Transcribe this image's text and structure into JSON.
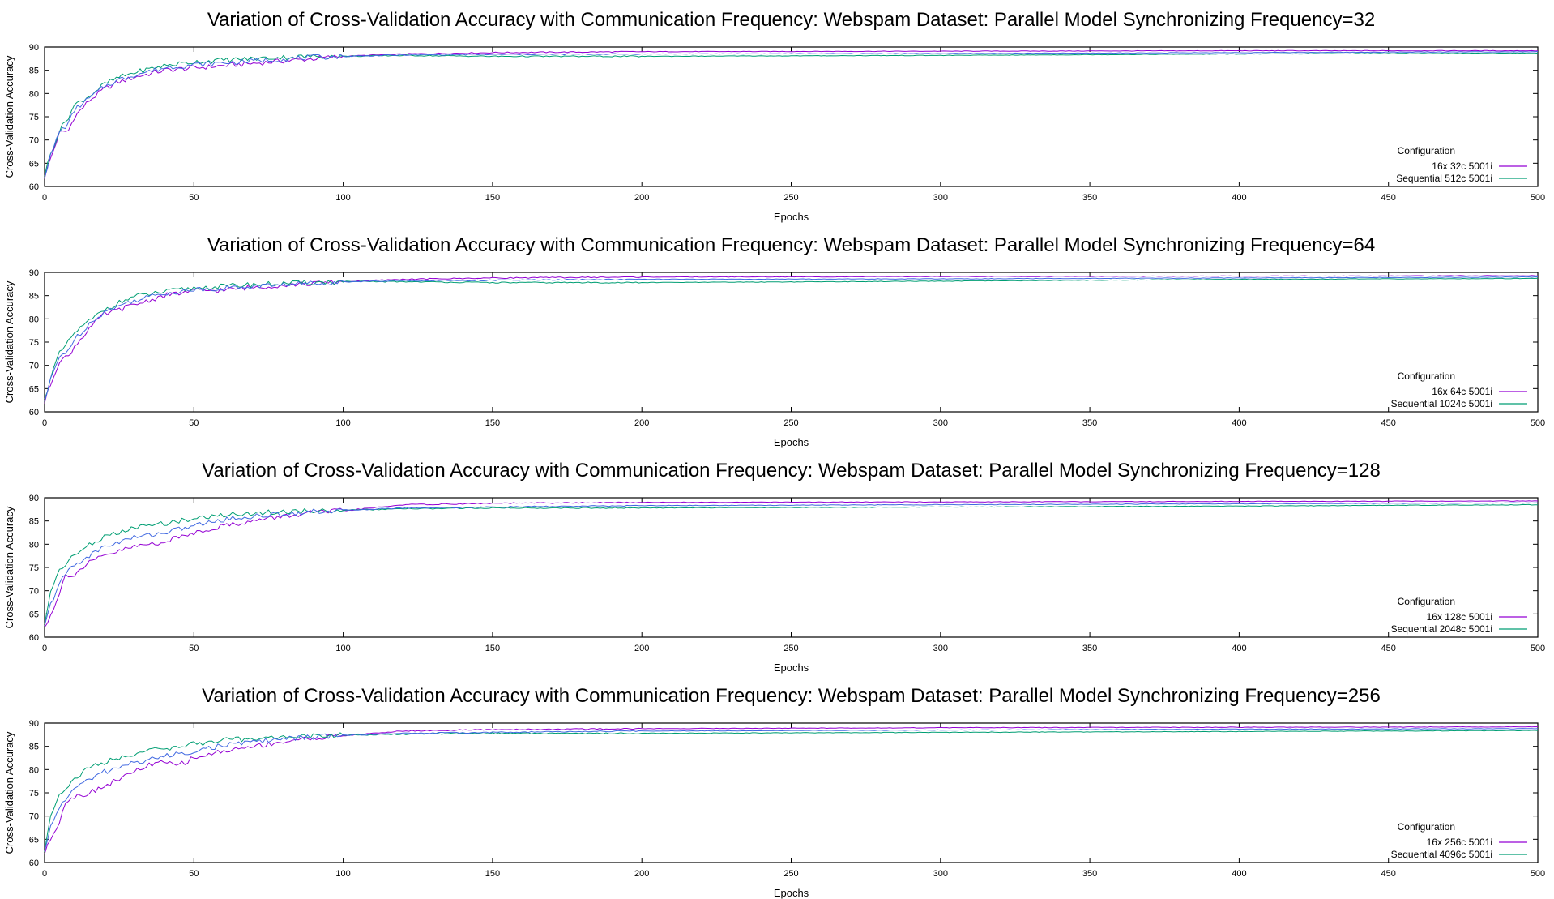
{
  "chart_data": [
    {
      "type": "line",
      "title": "Variation of Cross-Validation Accuracy with Communication Frequency: Webspam Dataset: Parallel Model Synchronizing Frequency=32",
      "xlabel": "Epochs",
      "ylabel": "Cross-Validation Accuracy",
      "xlim": [
        0,
        500
      ],
      "ylim": [
        60,
        90
      ],
      "xticks": [
        0,
        50,
        100,
        150,
        200,
        250,
        300,
        350,
        400,
        450,
        500
      ],
      "yticks": [
        60,
        65,
        70,
        75,
        80,
        85,
        90
      ],
      "grid": false,
      "legend": {
        "title": "Configuration",
        "position": "bottom-right"
      },
      "series": [
        {
          "name": "16x 32c 5001i",
          "color": "#9400d3",
          "x": [
            0,
            2,
            5,
            8,
            10,
            15,
            20,
            25,
            30,
            40,
            50,
            60,
            70,
            80,
            90,
            100,
            120,
            150,
            200,
            300,
            400,
            500
          ],
          "y": [
            62,
            66,
            71.5,
            72,
            75,
            78.5,
            81,
            82.5,
            83.5,
            85,
            85.5,
            86,
            86.5,
            87,
            87.5,
            88,
            88.5,
            88.8,
            89,
            89.1,
            89.2,
            89.2
          ]
        },
        {
          "name": "Sequential 512c 5001i",
          "color": "#009e73",
          "x": [
            0,
            2,
            5,
            8,
            10,
            15,
            20,
            25,
            30,
            40,
            50,
            60,
            70,
            80,
            90,
            100,
            120,
            150,
            200,
            300,
            400,
            500
          ],
          "y": [
            62.5,
            67,
            72,
            75,
            77.5,
            79.5,
            82,
            83.5,
            84.5,
            86,
            86.8,
            87.2,
            87.5,
            87.8,
            88,
            88,
            88.2,
            88,
            88,
            88.2,
            88.5,
            88.7
          ]
        },
        {
          "name": "",
          "color": "#4169e1",
          "x": [
            0,
            2,
            5,
            8,
            10,
            15,
            20,
            25,
            30,
            40,
            50,
            60,
            70,
            80,
            90,
            100,
            120,
            150,
            200,
            300,
            400,
            500
          ],
          "y": [
            62.3,
            66.5,
            71.8,
            73.5,
            76.5,
            79,
            81.5,
            83,
            84,
            85.5,
            86.2,
            86.6,
            87,
            87.4,
            87.8,
            88,
            88.3,
            88.4,
            88.5,
            88.6,
            88.8,
            89
          ]
        }
      ]
    },
    {
      "type": "line",
      "title": "Variation of Cross-Validation Accuracy with Communication Frequency: Webspam Dataset: Parallel Model Synchronizing Frequency=64",
      "xlabel": "Epochs",
      "ylabel": "Cross-Validation Accuracy",
      "xlim": [
        0,
        500
      ],
      "ylim": [
        60,
        90
      ],
      "xticks": [
        0,
        50,
        100,
        150,
        200,
        250,
        300,
        350,
        400,
        450,
        500
      ],
      "yticks": [
        60,
        65,
        70,
        75,
        80,
        85,
        90
      ],
      "grid": false,
      "legend": {
        "title": "Configuration",
        "position": "bottom-right"
      },
      "series": [
        {
          "name": "16x 64c 5001i",
          "color": "#9400d3",
          "x": [
            0,
            2,
            5,
            8,
            10,
            15,
            20,
            25,
            30,
            40,
            50,
            60,
            70,
            80,
            90,
            100,
            120,
            150,
            200,
            300,
            400,
            500
          ],
          "y": [
            62,
            66,
            71,
            72,
            74,
            78,
            81,
            82,
            83,
            85,
            86,
            86.2,
            86.8,
            87.3,
            87.6,
            88,
            88.5,
            88.8,
            89,
            89.1,
            89.2,
            89.3
          ]
        },
        {
          "name": "Sequential 1024c 5001i",
          "color": "#009e73",
          "x": [
            0,
            2,
            5,
            8,
            10,
            15,
            20,
            25,
            30,
            40,
            50,
            60,
            70,
            80,
            90,
            100,
            120,
            150,
            200,
            300,
            400,
            500
          ],
          "y": [
            62.5,
            67.5,
            72.5,
            75,
            77,
            79.5,
            82,
            83.5,
            84.8,
            85.8,
            86.6,
            87,
            87.4,
            87.6,
            87.8,
            88,
            88,
            87.8,
            87.8,
            88.1,
            88.5,
            88.7
          ]
        },
        {
          "name": "",
          "color": "#4169e1",
          "x": [
            0,
            2,
            5,
            8,
            10,
            15,
            20,
            25,
            30,
            40,
            50,
            60,
            70,
            80,
            90,
            100,
            120,
            150,
            200,
            300,
            400,
            500
          ],
          "y": [
            62.2,
            66.8,
            71.8,
            73.5,
            75.5,
            79,
            81.5,
            82.8,
            84,
            85.5,
            86.3,
            86.6,
            87,
            87.4,
            87.7,
            88,
            88.2,
            88.3,
            88.5,
            88.6,
            88.8,
            89
          ]
        }
      ]
    },
    {
      "type": "line",
      "title": "Variation of Cross-Validation Accuracy with Communication Frequency: Webspam Dataset: Parallel Model Synchronizing Frequency=128",
      "xlabel": "Epochs",
      "ylabel": "Cross-Validation Accuracy",
      "xlim": [
        0,
        500
      ],
      "ylim": [
        60,
        90
      ],
      "xticks": [
        0,
        50,
        100,
        150,
        200,
        250,
        300,
        350,
        400,
        450,
        500
      ],
      "yticks": [
        60,
        65,
        70,
        75,
        80,
        85,
        90
      ],
      "grid": false,
      "legend": {
        "title": "Configuration",
        "position": "bottom-right"
      },
      "series": [
        {
          "name": "16x 128c 5001i",
          "color": "#9400d3",
          "x": [
            0,
            2,
            5,
            7,
            9,
            12,
            15,
            20,
            25,
            30,
            40,
            50,
            60,
            70,
            80,
            90,
            100,
            110,
            120,
            150,
            200,
            300,
            400,
            500
          ],
          "y": [
            62,
            65,
            69,
            74,
            73,
            74.5,
            76,
            77.5,
            78.5,
            79.5,
            80.5,
            82.5,
            84,
            85,
            86,
            86.8,
            87.2,
            87.8,
            88.5,
            88.8,
            89,
            89.1,
            89.2,
            89.3
          ]
        },
        {
          "name": "Sequential 2048c 5001i",
          "color": "#009e73",
          "x": [
            0,
            2,
            5,
            8,
            10,
            15,
            20,
            25,
            30,
            40,
            50,
            60,
            70,
            80,
            90,
            100,
            120,
            150,
            200,
            300,
            400,
            500
          ],
          "y": [
            62.5,
            70,
            74.5,
            76.5,
            77.5,
            80,
            81.5,
            82.5,
            83.5,
            84.5,
            85.5,
            86.3,
            86.7,
            87,
            87.2,
            87.3,
            87.6,
            87.8,
            87.8,
            88,
            88.2,
            88.5
          ]
        },
        {
          "name": "",
          "color": "#4169e1",
          "x": [
            0,
            2,
            5,
            8,
            10,
            15,
            20,
            25,
            30,
            40,
            50,
            60,
            70,
            80,
            90,
            100,
            120,
            150,
            200,
            300,
            400,
            500
          ],
          "y": [
            62.2,
            67,
            71.5,
            74.5,
            75.5,
            77.5,
            79.5,
            80.5,
            81.5,
            82.5,
            84,
            85.3,
            86,
            86.5,
            87,
            87.3,
            87.8,
            88,
            88.3,
            88.5,
            88.7,
            88.9
          ]
        }
      ]
    },
    {
      "type": "line",
      "title": "Variation of Cross-Validation Accuracy with Communication Frequency: Webspam Dataset: Parallel Model Synchronizing Frequency=256",
      "xlabel": "Epochs",
      "ylabel": "Cross-Validation Accuracy",
      "xlim": [
        0,
        500
      ],
      "ylim": [
        60,
        90
      ],
      "xticks": [
        0,
        50,
        100,
        150,
        200,
        250,
        300,
        350,
        400,
        450,
        500
      ],
      "yticks": [
        60,
        65,
        70,
        75,
        80,
        85,
        90
      ],
      "grid": false,
      "legend": {
        "title": "Configuration",
        "position": "bottom-right"
      },
      "series": [
        {
          "name": "16x 256c 5001i",
          "color": "#9400d3",
          "x": [
            0,
            2,
            5,
            7,
            9,
            12,
            15,
            20,
            25,
            30,
            35,
            40,
            45,
            50,
            60,
            70,
            80,
            90,
            100,
            110,
            120,
            150,
            200,
            300,
            400,
            500
          ],
          "y": [
            62,
            65,
            69,
            73,
            74,
            74.5,
            75,
            76.5,
            78,
            79.5,
            81,
            81.5,
            81,
            82.5,
            84,
            85,
            86,
            86.8,
            87.3,
            87.8,
            88.3,
            88.6,
            88.8,
            89,
            89.1,
            89.2
          ]
        },
        {
          "name": "Sequential 4096c 5001i",
          "color": "#009e73",
          "x": [
            0,
            2,
            5,
            8,
            10,
            15,
            20,
            25,
            30,
            40,
            50,
            60,
            70,
            80,
            90,
            100,
            120,
            150,
            200,
            300,
            400,
            500
          ],
          "y": [
            62.5,
            70,
            75,
            76.5,
            78,
            80.5,
            81.5,
            82.5,
            83.5,
            84.5,
            85.5,
            86.3,
            86.7,
            87,
            87.2,
            87.4,
            87.6,
            87.8,
            87.8,
            88,
            88.2,
            88.4
          ]
        },
        {
          "name": "",
          "color": "#4169e1",
          "x": [
            0,
            2,
            5,
            8,
            10,
            15,
            20,
            25,
            30,
            40,
            50,
            60,
            70,
            80,
            90,
            100,
            120,
            150,
            200,
            300,
            400,
            500
          ],
          "y": [
            62.2,
            67.5,
            72,
            74.5,
            76,
            77.8,
            79.5,
            80.5,
            81.5,
            82.8,
            84,
            85.2,
            86,
            86.6,
            87,
            87.4,
            87.8,
            88,
            88.3,
            88.5,
            88.7,
            88.8
          ]
        }
      ]
    }
  ]
}
